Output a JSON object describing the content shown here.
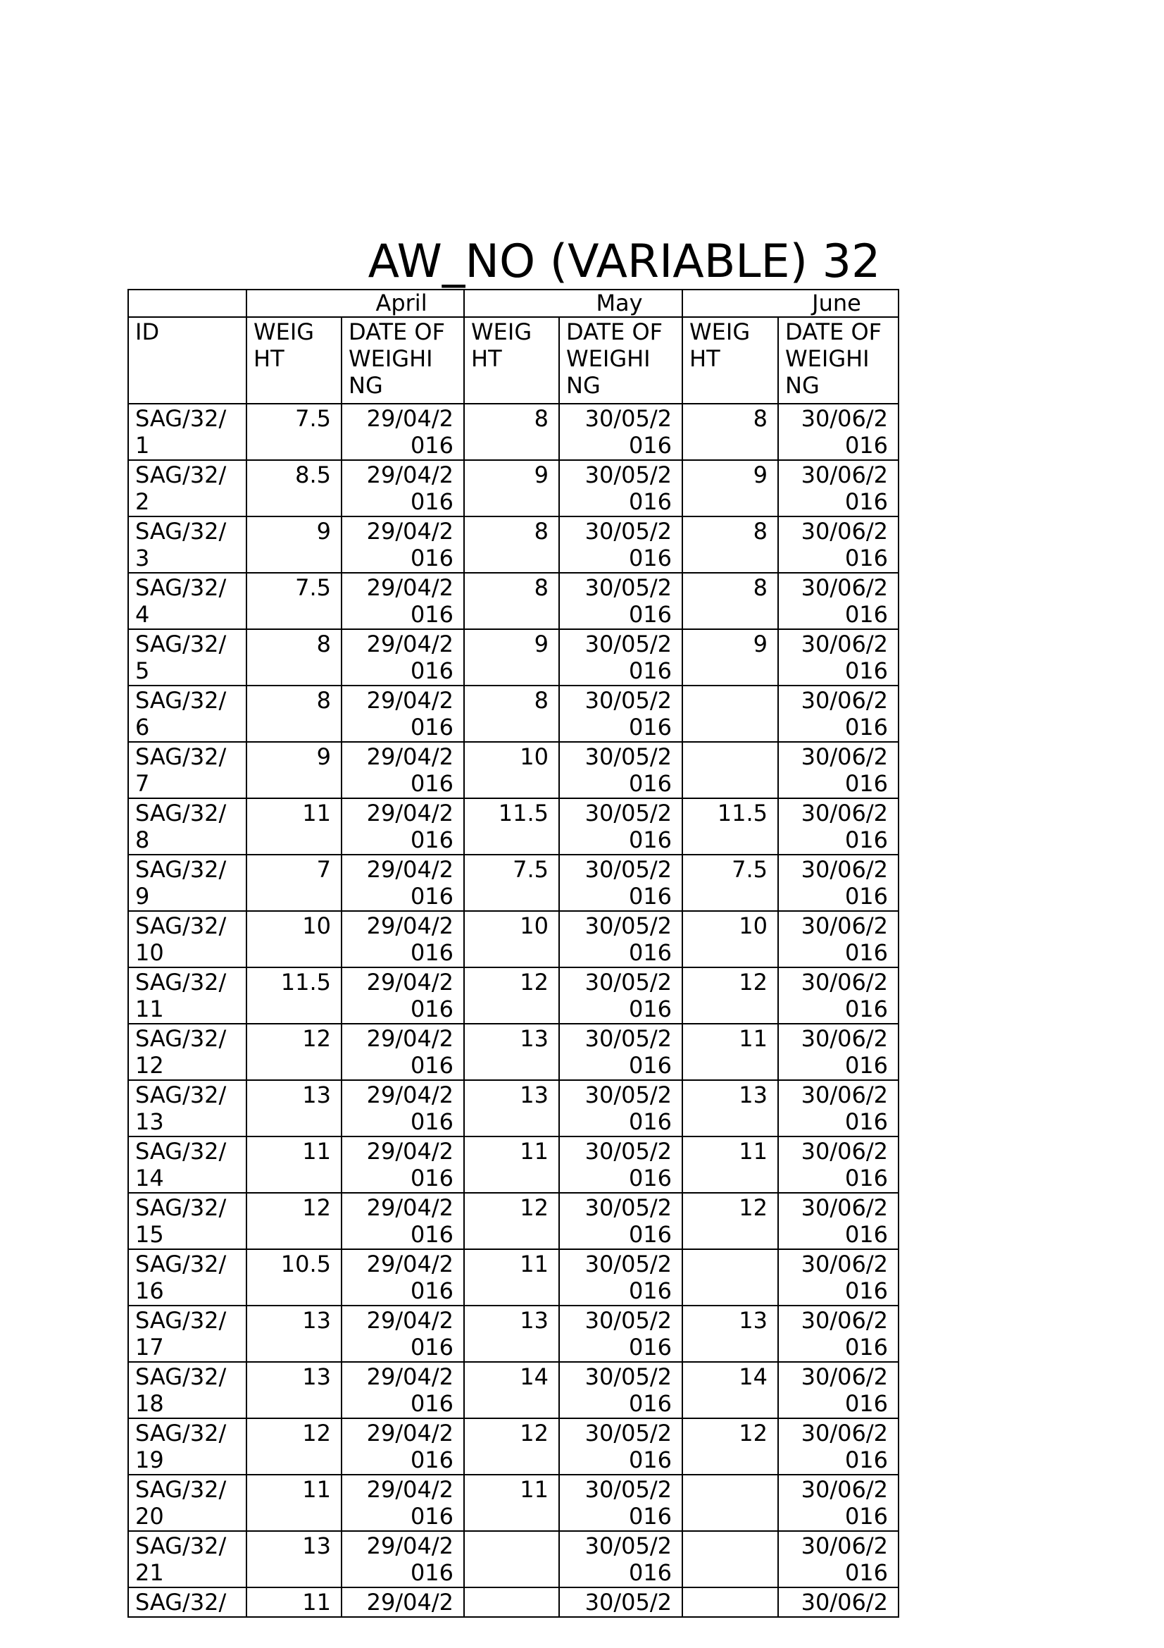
{
  "document": {
    "title": "AW_NO (VARIABLE) 32"
  },
  "table": {
    "months": {
      "corner": "",
      "april": "April",
      "may": "May",
      "june": "June"
    },
    "headers": {
      "id": "ID",
      "weight": "WEIG\nHT",
      "date": "DATE OF\nWEIGHI\nNG"
    },
    "rows": [
      {
        "id": "SAG/32/\n1",
        "april_weight": "7.5",
        "april_date": "29/04/2\n016",
        "may_weight": "8",
        "may_date": "30/05/2\n016",
        "june_weight": "8",
        "june_date": "30/06/2\n016"
      },
      {
        "id": "SAG/32/\n2",
        "april_weight": "8.5",
        "april_date": "29/04/2\n016",
        "may_weight": "9",
        "may_date": "30/05/2\n016",
        "june_weight": "9",
        "june_date": "30/06/2\n016"
      },
      {
        "id": "SAG/32/\n3",
        "april_weight": "9",
        "april_date": "29/04/2\n016",
        "may_weight": "8",
        "may_date": "30/05/2\n016",
        "june_weight": "8",
        "june_date": "30/06/2\n016"
      },
      {
        "id": "SAG/32/\n4",
        "april_weight": "7.5",
        "april_date": "29/04/2\n016",
        "may_weight": "8",
        "may_date": "30/05/2\n016",
        "june_weight": "8",
        "june_date": "30/06/2\n016"
      },
      {
        "id": "SAG/32/\n5",
        "april_weight": "8",
        "april_date": "29/04/2\n016",
        "may_weight": "9",
        "may_date": "30/05/2\n016",
        "june_weight": "9",
        "june_date": "30/06/2\n016"
      },
      {
        "id": "SAG/32/\n6",
        "april_weight": "8",
        "april_date": "29/04/2\n016",
        "may_weight": "8",
        "may_date": "30/05/2\n016",
        "june_weight": "",
        "june_date": "30/06/2\n016"
      },
      {
        "id": "SAG/32/\n7",
        "april_weight": "9",
        "april_date": "29/04/2\n016",
        "may_weight": "10",
        "may_date": "30/05/2\n016",
        "june_weight": "",
        "june_date": "30/06/2\n016"
      },
      {
        "id": "SAG/32/\n8",
        "april_weight": "11",
        "april_date": "29/04/2\n016",
        "may_weight": "11.5",
        "may_date": "30/05/2\n016",
        "june_weight": "11.5",
        "june_date": "30/06/2\n016"
      },
      {
        "id": "SAG/32/\n9",
        "april_weight": "7",
        "april_date": "29/04/2\n016",
        "may_weight": "7.5",
        "may_date": "30/05/2\n016",
        "june_weight": "7.5",
        "june_date": "30/06/2\n016"
      },
      {
        "id": "SAG/32/\n10",
        "april_weight": "10",
        "april_date": "29/04/2\n016",
        "may_weight": "10",
        "may_date": "30/05/2\n016",
        "june_weight": "10",
        "june_date": "30/06/2\n016"
      },
      {
        "id": "SAG/32/\n11",
        "april_weight": "11.5",
        "april_date": "29/04/2\n016",
        "may_weight": "12",
        "may_date": "30/05/2\n016",
        "june_weight": "12",
        "june_date": "30/06/2\n016"
      },
      {
        "id": "SAG/32/\n12",
        "april_weight": "12",
        "april_date": "29/04/2\n016",
        "may_weight": "13",
        "may_date": "30/05/2\n016",
        "june_weight": "11",
        "june_date": "30/06/2\n016"
      },
      {
        "id": "SAG/32/\n13",
        "april_weight": "13",
        "april_date": "29/04/2\n016",
        "may_weight": "13",
        "may_date": "30/05/2\n016",
        "june_weight": "13",
        "june_date": "30/06/2\n016"
      },
      {
        "id": "SAG/32/\n14",
        "april_weight": "11",
        "april_date": "29/04/2\n016",
        "may_weight": "11",
        "may_date": "30/05/2\n016",
        "june_weight": "11",
        "june_date": "30/06/2\n016"
      },
      {
        "id": "SAG/32/\n15",
        "april_weight": "12",
        "april_date": "29/04/2\n016",
        "may_weight": "12",
        "may_date": "30/05/2\n016",
        "june_weight": "12",
        "june_date": "30/06/2\n016"
      },
      {
        "id": "SAG/32/\n16",
        "april_weight": "10.5",
        "april_date": "29/04/2\n016",
        "may_weight": "11",
        "may_date": "30/05/2\n016",
        "june_weight": "",
        "june_date": "30/06/2\n016"
      },
      {
        "id": "SAG/32/\n17",
        "april_weight": "13",
        "april_date": "29/04/2\n016",
        "may_weight": "13",
        "may_date": "30/05/2\n016",
        "june_weight": "13",
        "june_date": "30/06/2\n016"
      },
      {
        "id": "SAG/32/\n18",
        "april_weight": "13",
        "april_date": "29/04/2\n016",
        "may_weight": "14",
        "may_date": "30/05/2\n016",
        "june_weight": "14",
        "june_date": "30/06/2\n016"
      },
      {
        "id": "SAG/32/\n19",
        "april_weight": "12",
        "april_date": "29/04/2\n016",
        "may_weight": "12",
        "may_date": "30/05/2\n016",
        "june_weight": "12",
        "june_date": "30/06/2\n016"
      },
      {
        "id": "SAG/32/\n20",
        "april_weight": "11",
        "april_date": "29/04/2\n016",
        "may_weight": "11",
        "may_date": "30/05/2\n016",
        "june_weight": "",
        "june_date": "30/06/2\n016"
      },
      {
        "id": "SAG/32/\n21",
        "april_weight": "13",
        "april_date": "29/04/2\n016",
        "may_weight": "",
        "may_date": "30/05/2\n016",
        "june_weight": "",
        "june_date": "30/06/2\n016"
      },
      {
        "id": "SAG/32/",
        "april_weight": "11",
        "april_date": "29/04/2",
        "may_weight": "",
        "may_date": "30/05/2",
        "june_weight": "",
        "june_date": "30/06/2",
        "clipped": true
      }
    ]
  }
}
